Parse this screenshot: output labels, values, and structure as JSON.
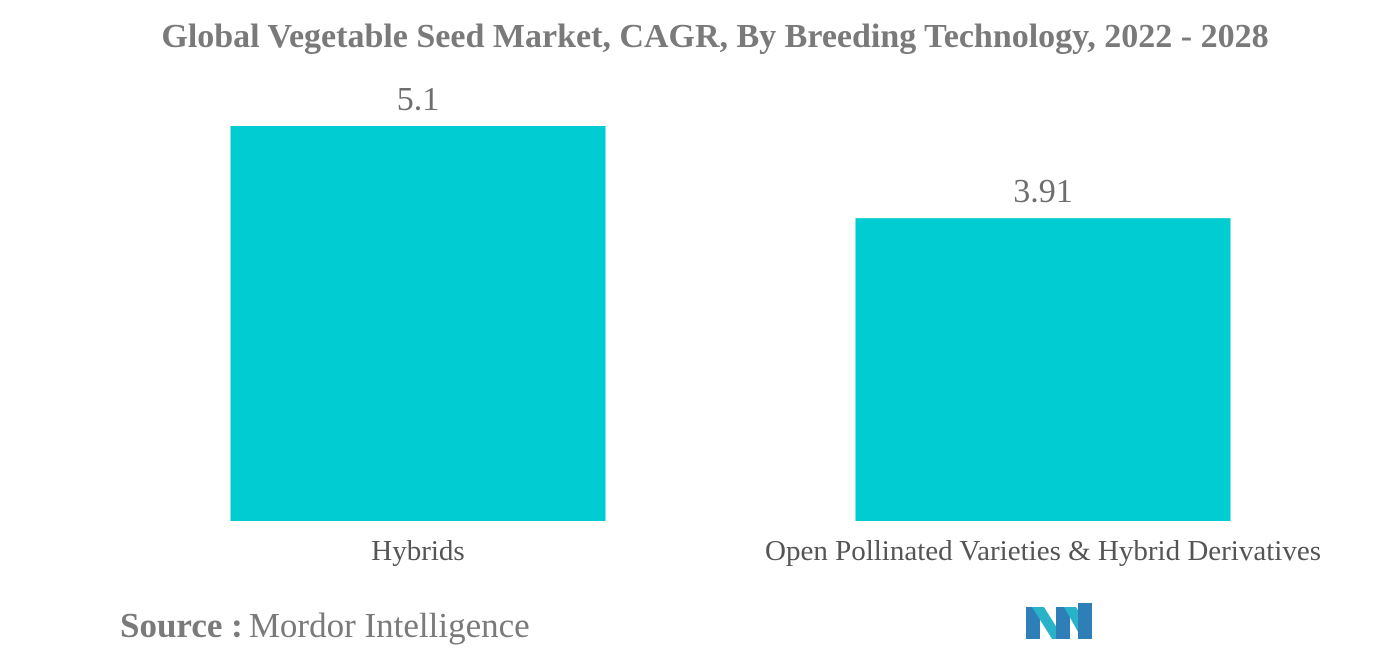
{
  "chart_data": {
    "type": "bar",
    "title": "Global Vegetable Seed Market, CAGR, By Breeding Technology, 2022 - 2028",
    "categories": [
      "Hybrids",
      "Open Pollinated Varieties & Hybrid Derivatives"
    ],
    "values": [
      5.1,
      3.91
    ],
    "value_labels": [
      "5.1",
      "3.91"
    ],
    "xlabel": "",
    "ylabel": "",
    "ylim": [
      0,
      5.1
    ],
    "grid": false,
    "legend": "none",
    "bar_color": "#00CCD1"
  },
  "source": {
    "label": "Source :",
    "value": "Mordor Intelligence"
  },
  "logo": {
    "name": "mordor-intelligence-logo",
    "colors": [
      "#2E7FB8",
      "#28B3C9"
    ]
  }
}
